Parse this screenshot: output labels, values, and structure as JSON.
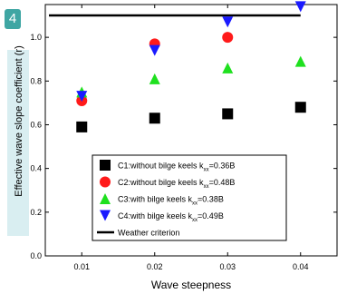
{
  "badge": "4",
  "chart_data": {
    "type": "scatter",
    "xlabel": "Wave steepness",
    "ylabel": "Effective wave slope coefficient (r)",
    "x_ticks": [
      "0.01",
      "0.02",
      "0.03",
      "0.04"
    ],
    "y_ticks": [
      "0.0",
      "0.2",
      "0.4",
      "0.6",
      "0.8",
      "1.0"
    ],
    "xlim": [
      0.005,
      0.045
    ],
    "ylim": [
      0.0,
      1.15
    ],
    "grid": false,
    "legend_position": "bottom-center",
    "series": [
      {
        "name": "C1:without bilge keels k",
        "sub": "xx",
        "suffix": "=0.36B",
        "marker": "square",
        "color": "#000000",
        "x": [
          0.01,
          0.02,
          0.03,
          0.04
        ],
        "y": [
          0.59,
          0.63,
          0.65,
          0.68
        ]
      },
      {
        "name": "C2:without bilge keels k",
        "sub": "xx",
        "suffix": "=0.48B",
        "marker": "circle",
        "color": "#ff1a1a",
        "x": [
          0.01,
          0.02,
          0.03,
          0.04
        ],
        "y": [
          0.71,
          0.97,
          1.0,
          null
        ]
      },
      {
        "name": "C3:with bilge keels k",
        "sub": "xx",
        "suffix": "=0.38B",
        "marker": "triangle-up",
        "color": "#1fe01f",
        "x": [
          0.01,
          0.02,
          0.03,
          0.04
        ],
        "y": [
          0.75,
          0.81,
          0.86,
          0.89
        ]
      },
      {
        "name": "C4:with bilge keels k",
        "sub": "xx",
        "suffix": "=0.49B",
        "marker": "triangle-down",
        "color": "#1a1aff",
        "x": [
          0.01,
          0.02,
          0.03,
          0.04
        ],
        "y": [
          0.73,
          0.94,
          1.07,
          1.14
        ]
      }
    ],
    "reference_line": {
      "name": "Weather criterion",
      "y": 1.1,
      "color": "#000000"
    }
  }
}
